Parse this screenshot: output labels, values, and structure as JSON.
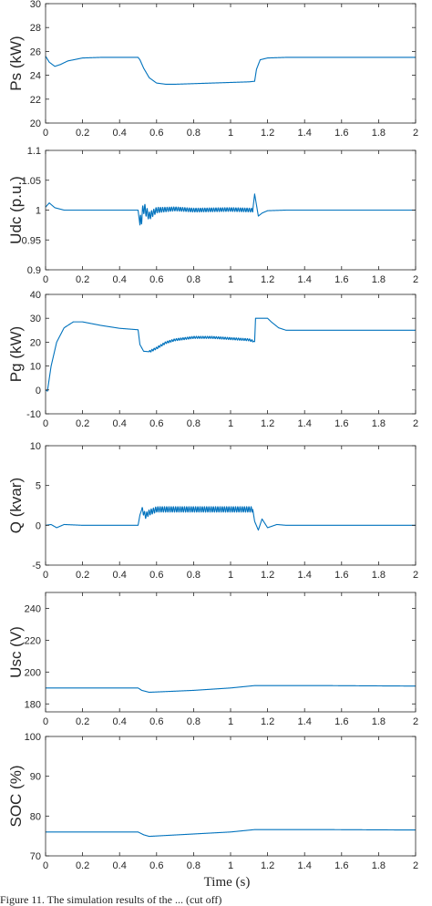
{
  "figure": {
    "xlabel": "Time (s)",
    "caption_fragment": "Figure 11. The simulation results of the ... (cut off)"
  },
  "chart_data": [
    {
      "type": "line",
      "ylabel": "Ps (kW)",
      "xlim": [
        0,
        2
      ],
      "ylim": [
        20,
        30
      ],
      "xticks": [
        0,
        0.2,
        0.4,
        0.6,
        0.8,
        1,
        1.2,
        1.4,
        1.6,
        1.8,
        2
      ],
      "yticks": [
        20,
        22,
        24,
        26,
        28,
        30
      ],
      "series": [
        {
          "color": "#0072BD",
          "x": [
            0,
            0.02,
            0.05,
            0.08,
            0.12,
            0.2,
            0.3,
            0.5,
            0.51,
            0.53,
            0.56,
            0.6,
            0.65,
            0.7,
            0.8,
            0.9,
            1.0,
            1.1,
            1.13,
            1.14,
            1.16,
            1.2,
            1.3,
            1.5,
            2.0
          ],
          "y": [
            25.6,
            25.1,
            24.75,
            24.9,
            25.2,
            25.45,
            25.5,
            25.5,
            25.3,
            24.6,
            23.8,
            23.35,
            23.25,
            23.25,
            23.3,
            23.35,
            23.4,
            23.45,
            23.5,
            24.5,
            25.3,
            25.45,
            25.5,
            25.5,
            25.5
          ]
        }
      ]
    },
    {
      "type": "line",
      "ylabel": "Udc (p.u.)",
      "xlim": [
        0,
        2
      ],
      "ylim": [
        0.9,
        1.1
      ],
      "xticks": [
        0,
        0.2,
        0.4,
        0.6,
        0.8,
        1,
        1.2,
        1.4,
        1.6,
        1.8,
        2
      ],
      "yticks": [
        0.9,
        0.95,
        1,
        1.05,
        1.1
      ],
      "ytick_labels": [
        "0.9",
        "0.95",
        "1",
        "1.05",
        "1.1"
      ],
      "series": [
        {
          "color": "#0072BD",
          "x": [
            0,
            0.02,
            0.05,
            0.1,
            0.2,
            0.5,
            0.51,
            0.53,
            0.56,
            0.6,
            0.7,
            0.8,
            1.0,
            1.12,
            1.13,
            1.15,
            1.17,
            1.2,
            1.3,
            1.5,
            2.0
          ],
          "y": [
            1.005,
            1.012,
            1.004,
            1.0,
            1.0,
            1.0,
            0.975,
            1.004,
            0.99,
            1.0,
            1.002,
            1.0,
            1.001,
            1.0,
            1.027,
            0.99,
            0.995,
            0.999,
            1.0,
            1.0,
            1.0
          ]
        }
      ]
    },
    {
      "type": "line",
      "ylabel": "Pg (kW)",
      "xlim": [
        0,
        2
      ],
      "ylim": [
        -10,
        40
      ],
      "xticks": [
        0,
        0.2,
        0.4,
        0.6,
        0.8,
        1,
        1.2,
        1.4,
        1.6,
        1.8,
        2
      ],
      "yticks": [
        -10,
        0,
        10,
        20,
        30,
        40
      ],
      "series": [
        {
          "color": "#0072BD",
          "x": [
            0,
            0.01,
            0.03,
            0.06,
            0.1,
            0.15,
            0.2,
            0.3,
            0.4,
            0.5,
            0.51,
            0.53,
            0.56,
            0.6,
            0.65,
            0.7,
            0.8,
            0.9,
            1.0,
            1.1,
            1.13,
            1.135,
            1.2,
            1.22,
            1.26,
            1.3,
            1.4,
            1.6,
            2.0
          ],
          "y": [
            0,
            -0.5,
            10,
            20,
            26,
            28.5,
            28.5,
            27,
            25.8,
            25.2,
            19,
            16.2,
            16.0,
            17.5,
            19.8,
            21.0,
            22.0,
            22.0,
            21.5,
            21.0,
            20.2,
            30,
            30,
            28.5,
            26.0,
            25.0,
            25.0,
            25.0,
            25.0
          ]
        }
      ]
    },
    {
      "type": "line",
      "ylabel": "Q (kvar)",
      "xlim": [
        0,
        2
      ],
      "ylim": [
        -5,
        10
      ],
      "xticks": [
        0,
        0.2,
        0.4,
        0.6,
        0.8,
        1,
        1.2,
        1.4,
        1.6,
        1.8,
        2
      ],
      "yticks": [
        -5,
        0,
        5,
        10
      ],
      "series": [
        {
          "color": "#0072BD",
          "x": [
            0,
            0.03,
            0.06,
            0.1,
            0.2,
            0.5,
            0.51,
            0.52,
            0.54,
            0.56,
            0.6,
            0.7,
            0.8,
            1.0,
            1.12,
            1.13,
            1.15,
            1.17,
            1.2,
            1.25,
            1.3,
            2.0
          ],
          "y": [
            0,
            0.1,
            -0.3,
            0.1,
            0,
            0,
            1.3,
            2.0,
            1.2,
            1.6,
            2.0,
            2.0,
            2.0,
            2.0,
            2.0,
            0.5,
            -0.6,
            0.8,
            -0.3,
            0.1,
            0,
            0
          ]
        }
      ]
    },
    {
      "type": "line",
      "ylabel": "Usc (V)",
      "xlim": [
        0,
        2
      ],
      "ylim": [
        175,
        250
      ],
      "xticks": [
        0,
        0.2,
        0.4,
        0.6,
        0.8,
        1,
        1.2,
        1.4,
        1.6,
        1.8,
        2
      ],
      "yticks": [
        180,
        200,
        220,
        240
      ],
      "series": [
        {
          "color": "#0072BD",
          "x": [
            0,
            0.5,
            0.52,
            0.56,
            0.6,
            0.8,
            1.0,
            1.13,
            1.2,
            1.5,
            2.0
          ],
          "y": [
            190,
            190,
            188.5,
            187.3,
            187.5,
            188.5,
            190.0,
            191.5,
            191.5,
            191.5,
            191.2
          ]
        }
      ]
    },
    {
      "type": "line",
      "ylabel": "SOC (%)",
      "xlim": [
        0,
        2
      ],
      "ylim": [
        70,
        100
      ],
      "xticks": [
        0,
        0.2,
        0.4,
        0.6,
        0.8,
        1,
        1.2,
        1.4,
        1.6,
        1.8,
        2
      ],
      "yticks": [
        70,
        80,
        90,
        100
      ],
      "series": [
        {
          "color": "#0072BD",
          "x": [
            0,
            0.5,
            0.53,
            0.56,
            0.6,
            0.8,
            1.0,
            1.13,
            1.2,
            1.5,
            2.0
          ],
          "y": [
            76,
            76,
            75.3,
            74.9,
            75.0,
            75.5,
            76.0,
            76.6,
            76.6,
            76.6,
            76.5
          ]
        }
      ]
    }
  ]
}
